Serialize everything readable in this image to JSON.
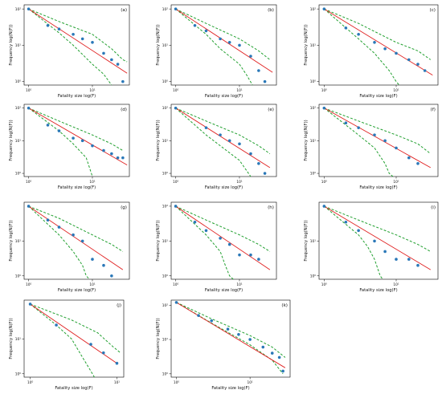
{
  "colors": {
    "points": "#2a78b8",
    "fit_line": "#e02020",
    "bounds": "#22a030"
  },
  "chart_data": [
    {
      "type": "scatter",
      "label": "(a)",
      "xlabel": "Fatality size log(F)",
      "ylabel": "Frequency log(N(F))",
      "xscale": "log",
      "yscale": "log",
      "xlim": [
        0.85,
        38
      ],
      "ylim": [
        0.8,
        130
      ],
      "x_ticks": [
        {
          "value": 1,
          "label": "10⁰"
        },
        {
          "value": 10,
          "label": "10¹"
        }
      ],
      "y_ticks": [
        {
          "value": 1,
          "label": "10⁰"
        },
        {
          "value": 10,
          "label": "10¹"
        },
        {
          "value": 100,
          "label": "10²"
        }
      ],
      "points": [
        [
          1,
          100
        ],
        [
          2,
          35
        ],
        [
          3,
          28
        ],
        [
          5,
          20
        ],
        [
          7,
          15
        ],
        [
          10,
          12
        ],
        [
          15,
          6
        ],
        [
          20,
          4
        ],
        [
          25,
          3
        ],
        [
          30,
          1
        ]
      ],
      "fit": [
        [
          1,
          100
        ],
        [
          35,
          1.7
        ]
      ],
      "upper_bound": [
        [
          1,
          100
        ],
        [
          3,
          45
        ],
        [
          10,
          20
        ],
        [
          20,
          8
        ],
        [
          30,
          4
        ],
        [
          35,
          3.5
        ]
      ],
      "lower_bound": [
        [
          1,
          100
        ],
        [
          3,
          22
        ],
        [
          5,
          10
        ],
        [
          10,
          3
        ],
        [
          15,
          1.6
        ],
        [
          20,
          0.8
        ]
      ]
    },
    {
      "type": "scatter",
      "label": "(b)",
      "xlabel": "Fatality size log(F)",
      "ylabel": "Frequency log(N(F))",
      "xscale": "log",
      "yscale": "log",
      "xlim": [
        0.85,
        38
      ],
      "ylim": [
        0.8,
        130
      ],
      "x_ticks": [
        {
          "value": 1,
          "label": "10⁰"
        },
        {
          "value": 10,
          "label": "10¹"
        }
      ],
      "y_ticks": [
        {
          "value": 1,
          "label": "10⁰"
        },
        {
          "value": 10,
          "label": "10¹"
        },
        {
          "value": 100,
          "label": "10²"
        }
      ],
      "points": [
        [
          1,
          100
        ],
        [
          2,
          35
        ],
        [
          3,
          25
        ],
        [
          5,
          15
        ],
        [
          7,
          12
        ],
        [
          10,
          10
        ],
        [
          15,
          5
        ],
        [
          20,
          2
        ],
        [
          25,
          1
        ]
      ],
      "fit": [
        [
          1,
          100
        ],
        [
          33,
          1.8
        ]
      ],
      "upper_bound": [
        [
          1,
          100
        ],
        [
          3,
          40
        ],
        [
          10,
          15
        ],
        [
          20,
          7
        ],
        [
          30,
          4
        ]
      ],
      "lower_bound": [
        [
          1,
          100
        ],
        [
          3,
          20
        ],
        [
          5,
          8
        ],
        [
          10,
          3
        ],
        [
          13,
          1.5
        ],
        [
          16,
          0.8
        ]
      ]
    },
    {
      "type": "scatter",
      "label": "(c)",
      "xlabel": "Fatality size log(F)",
      "ylabel": "Frequency log(N(F))",
      "xscale": "log",
      "yscale": "log",
      "xlim": [
        0.85,
        38
      ],
      "ylim": [
        0.8,
        130
      ],
      "x_ticks": [
        {
          "value": 1,
          "label": "10⁰"
        },
        {
          "value": 10,
          "label": "10¹"
        }
      ],
      "y_ticks": [
        {
          "value": 1,
          "label": "10⁰"
        },
        {
          "value": 10,
          "label": "10¹"
        },
        {
          "value": 100,
          "label": "10²"
        }
      ],
      "points": [
        [
          1,
          100
        ],
        [
          2,
          30
        ],
        [
          3,
          20
        ],
        [
          5,
          12
        ],
        [
          7,
          8
        ],
        [
          10,
          6
        ],
        [
          15,
          4
        ],
        [
          20,
          3
        ],
        [
          25,
          2
        ]
      ],
      "fit": [
        [
          1,
          100
        ],
        [
          32,
          1.5
        ]
      ],
      "upper_bound": [
        [
          1,
          100
        ],
        [
          3,
          40
        ],
        [
          10,
          12
        ],
        [
          20,
          7
        ],
        [
          30,
          4
        ]
      ],
      "lower_bound": [
        [
          1,
          100
        ],
        [
          3,
          15
        ],
        [
          5,
          6
        ],
        [
          8,
          2
        ],
        [
          10,
          1
        ],
        [
          11,
          0.8
        ]
      ]
    },
    {
      "type": "scatter",
      "label": "(d)",
      "xlabel": "Fatality size log(F)",
      "ylabel": "Frequency log(N(F))",
      "xscale": "log",
      "yscale": "log",
      "xlim": [
        0.85,
        38
      ],
      "ylim": [
        0.8,
        130
      ],
      "x_ticks": [
        {
          "value": 1,
          "label": "10⁰"
        },
        {
          "value": 10,
          "label": "10¹"
        }
      ],
      "y_ticks": [
        {
          "value": 1,
          "label": "10⁰"
        },
        {
          "value": 10,
          "label": "10¹"
        },
        {
          "value": 100,
          "label": "10²"
        }
      ],
      "points": [
        [
          1,
          100
        ],
        [
          2,
          30
        ],
        [
          3,
          20
        ],
        [
          5,
          12
        ],
        [
          7,
          10
        ],
        [
          10,
          7
        ],
        [
          15,
          5
        ],
        [
          20,
          4
        ],
        [
          25,
          3
        ],
        [
          30,
          3
        ]
      ],
      "fit": [
        [
          1,
          100
        ],
        [
          35,
          1.8
        ]
      ],
      "upper_bound": [
        [
          1,
          100
        ],
        [
          3,
          40
        ],
        [
          10,
          15
        ],
        [
          20,
          8
        ],
        [
          30,
          5
        ]
      ],
      "lower_bound": [
        [
          1,
          100
        ],
        [
          3,
          20
        ],
        [
          5,
          8
        ],
        [
          8,
          3
        ],
        [
          9,
          1.5
        ],
        [
          10,
          0.8
        ]
      ]
    },
    {
      "type": "scatter",
      "label": "(e)",
      "xlabel": "Fatality size log(F)",
      "ylabel": "Frequency log(N(F))",
      "xscale": "log",
      "yscale": "log",
      "xlim": [
        0.85,
        38
      ],
      "ylim": [
        0.8,
        130
      ],
      "x_ticks": [
        {
          "value": 1,
          "label": "10⁰"
        },
        {
          "value": 10,
          "label": "10¹"
        }
      ],
      "y_ticks": [
        {
          "value": 1,
          "label": "10⁰"
        },
        {
          "value": 10,
          "label": "10¹"
        },
        {
          "value": 100,
          "label": "10²"
        }
      ],
      "points": [
        [
          1,
          100
        ],
        [
          3,
          25
        ],
        [
          5,
          15
        ],
        [
          7,
          10
        ],
        [
          10,
          8
        ],
        [
          15,
          4
        ],
        [
          20,
          2
        ],
        [
          25,
          1
        ]
      ],
      "fit": [
        [
          1,
          100
        ],
        [
          30,
          1.5
        ]
      ],
      "upper_bound": [
        [
          1,
          100
        ],
        [
          3,
          40
        ],
        [
          10,
          15
        ],
        [
          20,
          7
        ],
        [
          30,
          4
        ]
      ],
      "lower_bound": [
        [
          1,
          100
        ],
        [
          3,
          15
        ],
        [
          5,
          7
        ],
        [
          10,
          2.5
        ],
        [
          13,
          1.2
        ],
        [
          15,
          0.8
        ]
      ]
    },
    {
      "type": "scatter",
      "label": "(f)",
      "xlabel": "Fatality size log(F)",
      "ylabel": "Frequency log(N(F))",
      "xscale": "log",
      "yscale": "log",
      "xlim": [
        0.85,
        38
      ],
      "ylim": [
        0.8,
        130
      ],
      "x_ticks": [
        {
          "value": 1,
          "label": "10⁰"
        },
        {
          "value": 10,
          "label": "10¹"
        }
      ],
      "y_ticks": [
        {
          "value": 1,
          "label": "10⁰"
        },
        {
          "value": 10,
          "label": "10¹"
        },
        {
          "value": 100,
          "label": "10²"
        }
      ],
      "points": [
        [
          1,
          100
        ],
        [
          2,
          35
        ],
        [
          3,
          25
        ],
        [
          5,
          15
        ],
        [
          7,
          10
        ],
        [
          10,
          6
        ],
        [
          15,
          3
        ],
        [
          20,
          2
        ]
      ],
      "fit": [
        [
          1,
          100
        ],
        [
          30,
          1.5
        ]
      ],
      "upper_bound": [
        [
          1,
          100
        ],
        [
          3,
          40
        ],
        [
          10,
          15
        ],
        [
          20,
          8
        ],
        [
          30,
          4
        ]
      ],
      "lower_bound": [
        [
          1,
          100
        ],
        [
          3,
          15
        ],
        [
          5,
          6
        ],
        [
          7,
          2
        ],
        [
          8,
          1
        ],
        [
          9,
          0.8
        ]
      ]
    },
    {
      "type": "scatter",
      "label": "(g)",
      "xlabel": "Fatality size log(F)",
      "ylabel": "Frequency log(N(F))",
      "xscale": "log",
      "yscale": "log",
      "xlim": [
        0.85,
        38
      ],
      "ylim": [
        0.8,
        130
      ],
      "x_ticks": [
        {
          "value": 1,
          "label": "10⁰"
        },
        {
          "value": 10,
          "label": "10¹"
        }
      ],
      "y_ticks": [
        {
          "value": 1,
          "label": "10⁰"
        },
        {
          "value": 10,
          "label": "10¹"
        }
      ],
      "points": [
        [
          1,
          100
        ],
        [
          2,
          40
        ],
        [
          3,
          25
        ],
        [
          5,
          15
        ],
        [
          7,
          10
        ],
        [
          10,
          3
        ],
        [
          15,
          2
        ],
        [
          20,
          1
        ]
      ],
      "fit": [
        [
          1,
          100
        ],
        [
          30,
          1.5
        ]
      ],
      "upper_bound": [
        [
          1,
          100
        ],
        [
          3,
          45
        ],
        [
          10,
          15
        ],
        [
          20,
          8
        ],
        [
          30,
          5
        ]
      ],
      "lower_bound": [
        [
          1,
          100
        ],
        [
          3,
          15
        ],
        [
          5,
          5
        ],
        [
          7,
          2
        ],
        [
          8,
          1
        ],
        [
          9,
          0.8
        ]
      ]
    },
    {
      "type": "scatter",
      "label": "(h)",
      "xlabel": "Fatality size log(F)",
      "ylabel": "Frequency log(N(F))",
      "xscale": "log",
      "yscale": "log",
      "xlim": [
        0.85,
        38
      ],
      "ylim": [
        0.8,
        130
      ],
      "x_ticks": [
        {
          "value": 1,
          "label": "10⁰"
        },
        {
          "value": 10,
          "label": "10¹"
        }
      ],
      "y_ticks": [
        {
          "value": 1,
          "label": "10⁰"
        },
        {
          "value": 10,
          "label": "10¹"
        },
        {
          "value": 100,
          "label": "10²"
        }
      ],
      "points": [
        [
          1,
          100
        ],
        [
          2,
          35
        ],
        [
          3,
          20
        ],
        [
          5,
          12
        ],
        [
          7,
          8
        ],
        [
          10,
          4
        ],
        [
          15,
          4
        ],
        [
          20,
          3
        ]
      ],
      "fit": [
        [
          1,
          100
        ],
        [
          30,
          1.5
        ]
      ],
      "upper_bound": [
        [
          1,
          100
        ],
        [
          3,
          40
        ],
        [
          10,
          15
        ],
        [
          20,
          8
        ],
        [
          30,
          5
        ]
      ],
      "lower_bound": [
        [
          1,
          100
        ],
        [
          3,
          15
        ],
        [
          5,
          5
        ],
        [
          6,
          2
        ],
        [
          7,
          1
        ],
        [
          8,
          0.8
        ]
      ]
    },
    {
      "type": "scatter",
      "label": "(i)",
      "xlabel": "Fatality size log(F)",
      "ylabel": "Frequency log(N(F))",
      "xscale": "log",
      "yscale": "log",
      "xlim": [
        0.85,
        38
      ],
      "ylim": [
        0.8,
        130
      ],
      "x_ticks": [
        {
          "value": 1,
          "label": "10⁰"
        },
        {
          "value": 10,
          "label": "10¹"
        }
      ],
      "y_ticks": [
        {
          "value": 1,
          "label": "10⁰"
        },
        {
          "value": 10,
          "label": "10¹"
        }
      ],
      "points": [
        [
          1,
          100
        ],
        [
          2,
          35
        ],
        [
          3,
          20
        ],
        [
          5,
          10
        ],
        [
          7,
          5
        ],
        [
          10,
          3
        ],
        [
          15,
          3
        ],
        [
          20,
          2
        ]
      ],
      "fit": [
        [
          1,
          100
        ],
        [
          30,
          1.5
        ]
      ],
      "upper_bound": [
        [
          1,
          100
        ],
        [
          3,
          40
        ],
        [
          10,
          15
        ],
        [
          20,
          8
        ],
        [
          30,
          5
        ]
      ],
      "lower_bound": [
        [
          1,
          100
        ],
        [
          3,
          15
        ],
        [
          4,
          7
        ],
        [
          5,
          3
        ],
        [
          6,
          1
        ],
        [
          6.5,
          0.8
        ]
      ]
    },
    {
      "type": "scatter",
      "label": "(j)",
      "xlabel": "Fatality size log(F)",
      "ylabel": "Frequency log(N(F))",
      "xscale": "log",
      "yscale": "log",
      "xlim": [
        0.85,
        12
      ],
      "ylim": [
        0.8,
        130
      ],
      "x_ticks": [
        {
          "value": 1,
          "label": "10⁰"
        },
        {
          "value": 10,
          "label": "10¹"
        }
      ],
      "y_ticks": [
        {
          "value": 1,
          "label": "10⁰"
        },
        {
          "value": 10,
          "label": "10¹"
        }
      ],
      "points": [
        [
          1,
          100
        ],
        [
          2,
          25
        ],
        [
          5,
          7
        ],
        [
          7,
          4
        ],
        [
          10,
          2
        ]
      ],
      "fit": [
        [
          1,
          100
        ],
        [
          10,
          2
        ]
      ],
      "upper_bound": [
        [
          1,
          100
        ],
        [
          3,
          35
        ],
        [
          6,
          15
        ],
        [
          9,
          6
        ],
        [
          11,
          4
        ]
      ],
      "lower_bound": [
        [
          1,
          100
        ],
        [
          2,
          25
        ],
        [
          3,
          10
        ],
        [
          4,
          3
        ],
        [
          5,
          1.2
        ],
        [
          5.5,
          0.8
        ]
      ]
    },
    {
      "type": "scatter",
      "label": "(k)",
      "xlabel": "Fatality size log(F)",
      "ylabel": "Frequency log(N(F))",
      "xscale": "log",
      "yscale": "log",
      "xlim": [
        0.85,
        35
      ],
      "ylim": [
        0.8,
        140
      ],
      "x_ticks": [
        {
          "value": 1,
          "label": "10⁰"
        },
        {
          "value": 10,
          "label": "10¹"
        }
      ],
      "y_ticks": [
        {
          "value": 1,
          "label": "10⁰"
        },
        {
          "value": 10,
          "label": "10¹"
        },
        {
          "value": 100,
          "label": "10²"
        }
      ],
      "points": [
        [
          1,
          120
        ],
        [
          2,
          50
        ],
        [
          3,
          35
        ],
        [
          5,
          20
        ],
        [
          7,
          14
        ],
        [
          10,
          10
        ],
        [
          15,
          6
        ],
        [
          20,
          4
        ],
        [
          25,
          3
        ],
        [
          28,
          1.2
        ]
      ],
      "fit": [
        [
          1,
          120
        ],
        [
          30,
          1.5
        ]
      ],
      "upper_bound": [
        [
          1,
          120
        ],
        [
          3,
          40
        ],
        [
          10,
          13
        ],
        [
          20,
          6
        ],
        [
          30,
          3
        ]
      ],
      "lower_bound": [
        [
          1,
          120
        ],
        [
          3,
          30
        ],
        [
          10,
          7
        ],
        [
          20,
          2.5
        ],
        [
          28,
          1
        ]
      ]
    }
  ]
}
